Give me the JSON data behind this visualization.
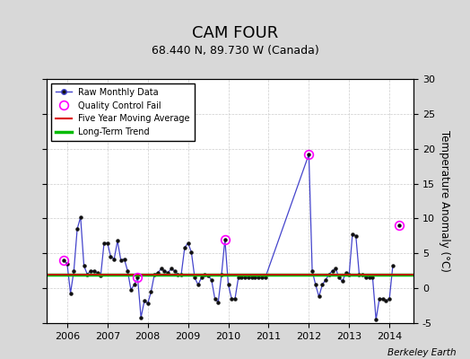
{
  "title": "CAM FOUR",
  "subtitle": "68.440 N, 89.730 W (Canada)",
  "ylabel": "Temperature Anomaly (°C)",
  "credit": "Berkeley Earth",
  "ylim": [
    -5,
    30
  ],
  "yticks": [
    -5,
    0,
    5,
    10,
    15,
    20,
    25,
    30
  ],
  "xlim_start": 2005.5,
  "xlim_end": 2014.6,
  "xticks": [
    2006,
    2007,
    2008,
    2009,
    2010,
    2011,
    2012,
    2013,
    2014
  ],
  "long_term_trend_y": 2.0,
  "five_year_avg_y": 2.0,
  "bg_color": "#d8d8d8",
  "plot_bg_color": "#ffffff",
  "line_color": "#4444cc",
  "marker_color": "#111111",
  "trend_color": "#00bb00",
  "avg_color": "#dd0000",
  "qc_color": "#ff00ff",
  "raw_data": [
    [
      2005.917,
      4.0
    ],
    [
      2006.0,
      3.5
    ],
    [
      2006.083,
      -0.7
    ],
    [
      2006.167,
      2.5
    ],
    [
      2006.25,
      8.5
    ],
    [
      2006.333,
      10.2
    ],
    [
      2006.417,
      3.2
    ],
    [
      2006.5,
      2.0
    ],
    [
      2006.583,
      2.5
    ],
    [
      2006.667,
      2.5
    ],
    [
      2006.75,
      2.2
    ],
    [
      2006.833,
      1.8
    ],
    [
      2006.917,
      6.5
    ],
    [
      2007.0,
      6.5
    ],
    [
      2007.083,
      4.5
    ],
    [
      2007.167,
      4.2
    ],
    [
      2007.25,
      6.8
    ],
    [
      2007.333,
      4.0
    ],
    [
      2007.417,
      4.2
    ],
    [
      2007.5,
      2.5
    ],
    [
      2007.583,
      -0.2
    ],
    [
      2007.667,
      0.5
    ],
    [
      2007.75,
      1.5
    ],
    [
      2007.833,
      -4.2
    ],
    [
      2007.917,
      -1.8
    ],
    [
      2008.0,
      -2.2
    ],
    [
      2008.083,
      -0.5
    ],
    [
      2008.167,
      2.0
    ],
    [
      2008.25,
      2.2
    ],
    [
      2008.333,
      2.8
    ],
    [
      2008.417,
      2.5
    ],
    [
      2008.5,
      2.2
    ],
    [
      2008.583,
      2.8
    ],
    [
      2008.667,
      2.5
    ],
    [
      2008.75,
      2.0
    ],
    [
      2008.833,
      2.0
    ],
    [
      2008.917,
      5.8
    ],
    [
      2009.0,
      6.5
    ],
    [
      2009.083,
      5.2
    ],
    [
      2009.167,
      1.5
    ],
    [
      2009.25,
      0.5
    ],
    [
      2009.333,
      1.5
    ],
    [
      2009.417,
      2.0
    ],
    [
      2009.5,
      1.8
    ],
    [
      2009.583,
      1.2
    ],
    [
      2009.667,
      -1.5
    ],
    [
      2009.75,
      -2.0
    ],
    [
      2009.833,
      2.0
    ],
    [
      2009.917,
      7.0
    ],
    [
      2010.0,
      0.5
    ],
    [
      2010.083,
      -1.5
    ],
    [
      2010.167,
      -1.5
    ],
    [
      2010.25,
      1.5
    ],
    [
      2010.333,
      1.5
    ],
    [
      2010.417,
      1.5
    ],
    [
      2010.5,
      1.5
    ],
    [
      2010.583,
      1.5
    ],
    [
      2010.667,
      1.5
    ],
    [
      2010.75,
      1.5
    ],
    [
      2010.833,
      1.5
    ],
    [
      2010.917,
      1.5
    ],
    [
      2012.0,
      19.2
    ],
    [
      2012.083,
      2.5
    ],
    [
      2012.167,
      0.5
    ],
    [
      2012.25,
      -1.2
    ],
    [
      2012.333,
      0.5
    ],
    [
      2012.417,
      1.2
    ],
    [
      2012.5,
      2.0
    ],
    [
      2012.583,
      2.5
    ],
    [
      2012.667,
      2.8
    ],
    [
      2012.75,
      1.5
    ],
    [
      2012.833,
      1.0
    ],
    [
      2012.917,
      2.2
    ],
    [
      2013.0,
      2.0
    ],
    [
      2013.083,
      7.8
    ],
    [
      2013.167,
      7.5
    ],
    [
      2013.25,
      2.0
    ],
    [
      2013.333,
      2.0
    ],
    [
      2013.417,
      1.5
    ],
    [
      2013.5,
      1.5
    ],
    [
      2013.583,
      1.5
    ],
    [
      2013.667,
      -4.5
    ],
    [
      2013.75,
      -1.5
    ],
    [
      2013.833,
      -1.5
    ],
    [
      2013.917,
      -1.8
    ],
    [
      2014.0,
      -1.5
    ],
    [
      2014.083,
      3.2
    ]
  ],
  "standalone_points": [
    [
      2014.25,
      9.0
    ]
  ],
  "qc_fail_points": [
    [
      2005.917,
      4.0
    ],
    [
      2007.75,
      1.5
    ],
    [
      2009.917,
      7.0
    ],
    [
      2012.0,
      19.2
    ],
    [
      2014.25,
      9.0
    ]
  ]
}
